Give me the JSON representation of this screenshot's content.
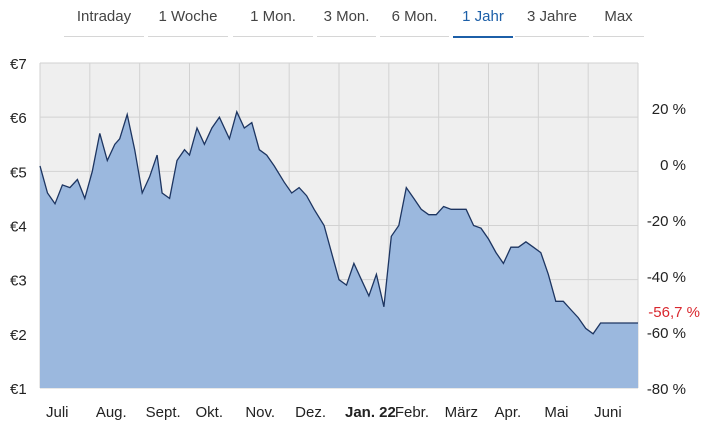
{
  "tabs": [
    {
      "label": "Intraday",
      "active": false
    },
    {
      "label": "1 Woche",
      "active": false
    },
    {
      "label": "1 Mon.",
      "active": false
    },
    {
      "label": "3 Mon.",
      "active": false
    },
    {
      "label": "6 Mon.",
      "active": false
    },
    {
      "label": "1 Jahr",
      "active": true
    },
    {
      "label": "3 Jahre",
      "active": false
    },
    {
      "label": "Max",
      "active": false
    }
  ],
  "colors": {
    "area_fill": "#9bb8de",
    "line": "#1d3561",
    "plot_bg": "#efefef",
    "active_tab": "#1c5fa8",
    "current_change": "#d9272e"
  },
  "chart_data": {
    "type": "area",
    "title": "",
    "xlabel": "",
    "ylabel": "",
    "ylim": [
      1,
      7
    ],
    "y_ticks": [
      "€1",
      "€2",
      "€3",
      "€4",
      "€5",
      "€6",
      "€7"
    ],
    "y2_ticks": [
      "-80 %",
      "-60 %",
      "-40 %",
      "-20 %",
      "0 %",
      "20 %"
    ],
    "x_ticks": [
      {
        "label": "Juli",
        "bold": false
      },
      {
        "label": "Aug.",
        "bold": false
      },
      {
        "label": "Sept.",
        "bold": false
      },
      {
        "label": "Okt.",
        "bold": false
      },
      {
        "label": "Nov.",
        "bold": false
      },
      {
        "label": "Dez.",
        "bold": false
      },
      {
        "label": "Jan. 22",
        "bold": true
      },
      {
        "label": "Febr.",
        "bold": false
      },
      {
        "label": "März",
        "bold": false
      },
      {
        "label": "Apr.",
        "bold": false
      },
      {
        "label": "Mai",
        "bold": false
      },
      {
        "label": "Juni",
        "bold": false
      }
    ],
    "current_change": "-56,7 %",
    "grid": true,
    "series": [
      {
        "x": [
          0,
          0.15,
          0.3,
          0.45,
          0.6,
          0.75,
          0.9,
          1.05,
          1.2,
          1.35,
          1.5,
          1.6,
          1.75,
          1.9,
          2.05,
          2.2,
          2.35,
          2.45,
          2.6,
          2.75,
          2.9,
          3.0,
          3.15,
          3.3,
          3.45,
          3.6,
          3.8,
          3.95,
          4.1,
          4.25,
          4.4,
          4.55,
          4.7,
          4.9,
          5.05,
          5.2,
          5.35,
          5.5,
          5.7,
          5.85,
          6.0,
          6.15,
          6.3,
          6.45,
          6.6,
          6.75,
          6.9,
          7.05,
          7.2,
          7.35,
          7.5,
          7.65,
          7.8,
          7.95,
          8.1,
          8.25,
          8.4,
          8.55,
          8.7,
          8.85,
          9.0,
          9.15,
          9.3,
          9.45,
          9.6,
          9.75,
          9.9,
          10.05,
          10.2,
          10.35,
          10.5,
          10.65,
          10.8,
          10.95,
          11.1,
          11.25,
          11.4,
          11.55,
          11.7,
          11.85,
          12.0
        ],
        "values": [
          5.1,
          4.6,
          4.4,
          4.75,
          4.7,
          4.85,
          4.5,
          5.0,
          5.7,
          5.2,
          5.5,
          5.6,
          6.05,
          5.4,
          4.6,
          4.9,
          5.3,
          4.6,
          4.5,
          5.2,
          5.4,
          5.3,
          5.8,
          5.5,
          5.8,
          6.0,
          5.6,
          6.1,
          5.8,
          5.9,
          5.4,
          5.3,
          5.1,
          4.8,
          4.6,
          4.7,
          4.55,
          4.3,
          4.0,
          3.5,
          3.0,
          2.9,
          3.3,
          3.0,
          2.7,
          3.1,
          2.5,
          3.8,
          4.0,
          4.7,
          4.5,
          4.3,
          4.2,
          4.2,
          4.35,
          4.3,
          4.3,
          4.3,
          4.0,
          3.95,
          3.75,
          3.5,
          3.3,
          3.6,
          3.6,
          3.7,
          3.6,
          3.5,
          3.1,
          2.6,
          2.6,
          2.45,
          2.3,
          2.1,
          2.0,
          2.2,
          2.2,
          2.2,
          2.2,
          2.2,
          2.2
        ]
      }
    ]
  }
}
